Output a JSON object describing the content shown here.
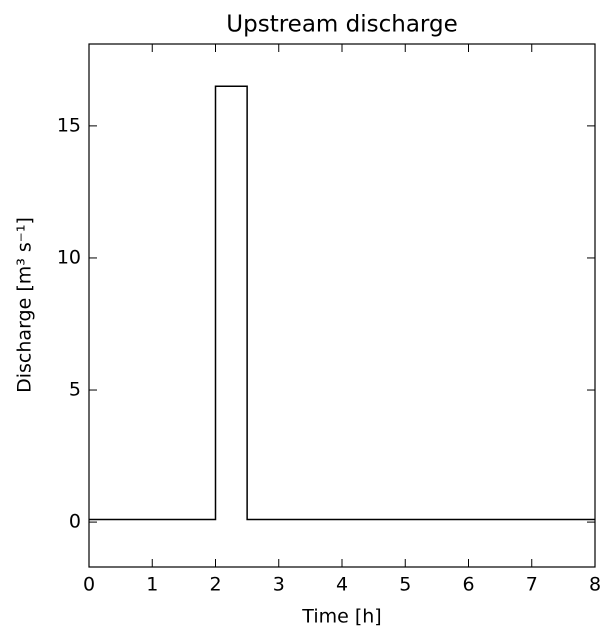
{
  "chart_data": {
    "type": "line",
    "title": "Upstream discharge",
    "x_label": "Time [h]",
    "y_label": "Discharge [m³ s⁻¹]",
    "series": [
      {
        "color": "#000000",
        "x": [
          0,
          2,
          2,
          2.5,
          2.5,
          8
        ],
        "values": [
          0.1,
          0.1,
          16.5,
          16.5,
          0.1,
          0.1
        ]
      }
    ],
    "xlim": [
      0,
      8
    ],
    "xticks": [
      0,
      1,
      2,
      3,
      4,
      5,
      6,
      7,
      8
    ],
    "ylim": [
      -1.7,
      18.1
    ],
    "yticks": [
      0,
      5,
      10,
      15
    ],
    "grid": false
  }
}
